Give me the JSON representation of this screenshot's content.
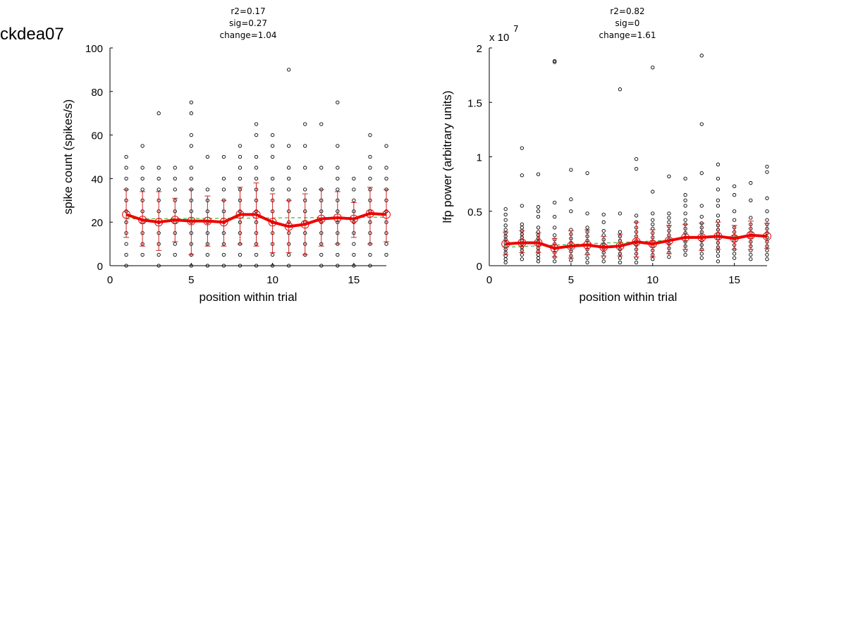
{
  "figure": {
    "title": "ckdea07"
  },
  "colors": {
    "points": "#000000",
    "mean_line": "#ee0000",
    "error_bars": "#cc2222",
    "fit_line": "#33bb33"
  },
  "chart_data": [
    {
      "type": "scatter",
      "stats": [
        "r2=0.17",
        "sig=0.27",
        "change=1.04"
      ],
      "xlabel": "position within trial",
      "ylabel": "spike count (spikes/s)",
      "xlim": [
        0,
        17
      ],
      "ylim": [
        0,
        100
      ],
      "x_ticks": [
        0,
        5,
        10,
        15
      ],
      "x_tick_labels": [
        "0",
        "5",
        "10",
        "15"
      ],
      "y_ticks": [
        0,
        20,
        40,
        60,
        80,
        100
      ],
      "y_tick_labels": [
        "0",
        "20",
        "40",
        "60",
        "80",
        "100"
      ],
      "exponent_label": "",
      "positions": [
        1,
        2,
        3,
        4,
        5,
        6,
        7,
        8,
        9,
        10,
        11,
        12,
        13,
        14,
        15,
        16,
        17
      ],
      "points": [
        [
          0,
          5,
          10,
          15,
          20,
          25,
          30,
          35,
          40,
          45,
          50
        ],
        [
          5,
          10,
          15,
          20,
          25,
          30,
          35,
          40,
          45,
          55
        ],
        [
          0,
          5,
          10,
          15,
          20,
          25,
          30,
          35,
          40,
          45,
          70
        ],
        [
          5,
          10,
          15,
          20,
          25,
          30,
          35,
          40,
          45
        ],
        [
          0,
          5,
          10,
          15,
          20,
          25,
          30,
          35,
          40,
          45,
          55,
          60,
          70,
          75
        ],
        [
          0,
          5,
          10,
          15,
          20,
          25,
          30,
          35,
          50
        ],
        [
          0,
          5,
          10,
          15,
          20,
          25,
          30,
          35,
          40,
          50
        ],
        [
          0,
          5,
          10,
          15,
          20,
          25,
          30,
          35,
          40,
          45,
          50,
          55
        ],
        [
          0,
          5,
          10,
          15,
          20,
          25,
          30,
          35,
          40,
          45,
          50,
          60,
          65
        ],
        [
          0,
          5,
          10,
          15,
          20,
          25,
          30,
          35,
          40,
          50,
          55,
          60
        ],
        [
          0,
          5,
          10,
          15,
          20,
          25,
          30,
          35,
          40,
          45,
          55,
          90
        ],
        [
          5,
          10,
          15,
          20,
          25,
          30,
          35,
          45,
          55,
          65
        ],
        [
          0,
          5,
          10,
          15,
          20,
          25,
          30,
          35,
          45,
          65
        ],
        [
          0,
          5,
          10,
          15,
          20,
          25,
          30,
          35,
          40,
          45,
          55,
          75
        ],
        [
          0,
          5,
          10,
          15,
          20,
          25,
          30,
          35,
          40
        ],
        [
          0,
          5,
          10,
          15,
          20,
          25,
          30,
          35,
          40,
          45,
          50,
          60
        ],
        [
          5,
          10,
          15,
          20,
          25,
          30,
          35,
          40,
          45,
          55
        ]
      ],
      "mean": [
        23.5,
        21,
        20,
        21,
        20.5,
        20.5,
        20,
        23.5,
        23.5,
        20,
        18,
        19,
        21.5,
        22,
        21.5,
        24,
        23.5
      ],
      "error_low": [
        13,
        9,
        7,
        11,
        5,
        9,
        9,
        10,
        9,
        6,
        6,
        5,
        9,
        10,
        13,
        10,
        11
      ],
      "error_high": [
        35,
        34,
        34,
        31,
        35,
        32,
        30,
        36,
        38,
        33,
        30,
        33,
        35,
        34,
        29,
        36,
        35
      ],
      "fit": [
        21.5,
        21.6,
        21.7,
        21.8,
        21.9,
        22.0,
        22.1,
        22.2,
        22.3
      ]
    },
    {
      "type": "scatter",
      "stats": [
        "r2=0.82",
        "sig=0",
        "change=1.61"
      ],
      "xlabel": "position within trial",
      "ylabel": "lfp power (arbitrary units)",
      "xlim": [
        0,
        17
      ],
      "ylim": [
        0,
        2
      ],
      "x_ticks": [
        0,
        5,
        10,
        15
      ],
      "x_tick_labels": [
        "0",
        "5",
        "10",
        "15"
      ],
      "y_ticks": [
        0,
        0.5,
        1,
        1.5,
        2
      ],
      "y_tick_labels": [
        "0",
        "0.5",
        "1",
        "1.5",
        "2"
      ],
      "exponent_label": "x 10",
      "exponent_power": "7",
      "positions": [
        1,
        2,
        3,
        4,
        5,
        6,
        7,
        8,
        9,
        10,
        11,
        12,
        13,
        14,
        15,
        16,
        17
      ],
      "points": [
        [
          0.03,
          0.06,
          0.09,
          0.12,
          0.15,
          0.18,
          0.21,
          0.24,
          0.27,
          0.3,
          0.33,
          0.37,
          0.42,
          0.47,
          0.52
        ],
        [
          0.06,
          0.1,
          0.14,
          0.17,
          0.2,
          0.23,
          0.26,
          0.29,
          0.32,
          0.35,
          0.38,
          0.55,
          0.83,
          1.08
        ],
        [
          0.04,
          0.07,
          0.1,
          0.13,
          0.16,
          0.19,
          0.22,
          0.25,
          0.28,
          0.31,
          0.35,
          0.45,
          0.5,
          0.54,
          0.84
        ],
        [
          0.04,
          0.08,
          0.12,
          0.16,
          0.2,
          0.24,
          0.28,
          0.35,
          0.45,
          0.58,
          1.87,
          1.88
        ],
        [
          0.05,
          0.09,
          0.13,
          0.17,
          0.21,
          0.25,
          0.29,
          0.33,
          0.5,
          0.61,
          0.88
        ],
        [
          0.03,
          0.07,
          0.11,
          0.15,
          0.19,
          0.23,
          0.27,
          0.31,
          0.35,
          0.48,
          0.85
        ],
        [
          0.04,
          0.08,
          0.12,
          0.16,
          0.2,
          0.24,
          0.28,
          0.32,
          0.4,
          0.47
        ],
        [
          0.03,
          0.07,
          0.11,
          0.15,
          0.19,
          0.23,
          0.27,
          0.31,
          0.48,
          1.62
        ],
        [
          0.03,
          0.07,
          0.11,
          0.15,
          0.19,
          0.23,
          0.27,
          0.31,
          0.35,
          0.4,
          0.46,
          0.89,
          0.98
        ],
        [
          0.06,
          0.1,
          0.14,
          0.18,
          0.22,
          0.26,
          0.3,
          0.34,
          0.38,
          0.42,
          0.48,
          0.68,
          1.82
        ],
        [
          0.08,
          0.12,
          0.16,
          0.2,
          0.24,
          0.28,
          0.32,
          0.36,
          0.4,
          0.44,
          0.48,
          0.82
        ],
        [
          0.1,
          0.14,
          0.18,
          0.22,
          0.26,
          0.3,
          0.34,
          0.38,
          0.42,
          0.48,
          0.55,
          0.6,
          0.65,
          0.8
        ],
        [
          0.07,
          0.11,
          0.15,
          0.19,
          0.23,
          0.27,
          0.31,
          0.35,
          0.39,
          0.45,
          0.55,
          0.85,
          1.3,
          1.93
        ],
        [
          0.04,
          0.09,
          0.13,
          0.17,
          0.21,
          0.25,
          0.29,
          0.33,
          0.37,
          0.41,
          0.46,
          0.55,
          0.6,
          0.7,
          0.8,
          0.93
        ],
        [
          0.07,
          0.11,
          0.15,
          0.19,
          0.23,
          0.27,
          0.31,
          0.35,
          0.42,
          0.5,
          0.65,
          0.73
        ],
        [
          0.06,
          0.1,
          0.14,
          0.18,
          0.22,
          0.26,
          0.3,
          0.34,
          0.38,
          0.44,
          0.6,
          0.76
        ],
        [
          0.06,
          0.1,
          0.14,
          0.18,
          0.22,
          0.26,
          0.3,
          0.34,
          0.38,
          0.42,
          0.5,
          0.62,
          0.86,
          0.91
        ]
      ],
      "mean": [
        0.2,
        0.21,
        0.21,
        0.16,
        0.18,
        0.19,
        0.17,
        0.18,
        0.22,
        0.2,
        0.23,
        0.26,
        0.26,
        0.27,
        0.25,
        0.28,
        0.27
      ],
      "error_low": [
        0.1,
        0.12,
        0.12,
        0.08,
        0.07,
        0.1,
        0.09,
        0.09,
        0.08,
        0.08,
        0.11,
        0.15,
        0.14,
        0.15,
        0.15,
        0.15,
        0.16
      ],
      "error_high": [
        0.31,
        0.32,
        0.3,
        0.25,
        0.32,
        0.33,
        0.27,
        0.29,
        0.4,
        0.33,
        0.37,
        0.38,
        0.39,
        0.4,
        0.37,
        0.41,
        0.39
      ],
      "fit": [
        0.17,
        0.18,
        0.19,
        0.2,
        0.21,
        0.22,
        0.23,
        0.25,
        0.26,
        0.27,
        0.28
      ]
    }
  ]
}
